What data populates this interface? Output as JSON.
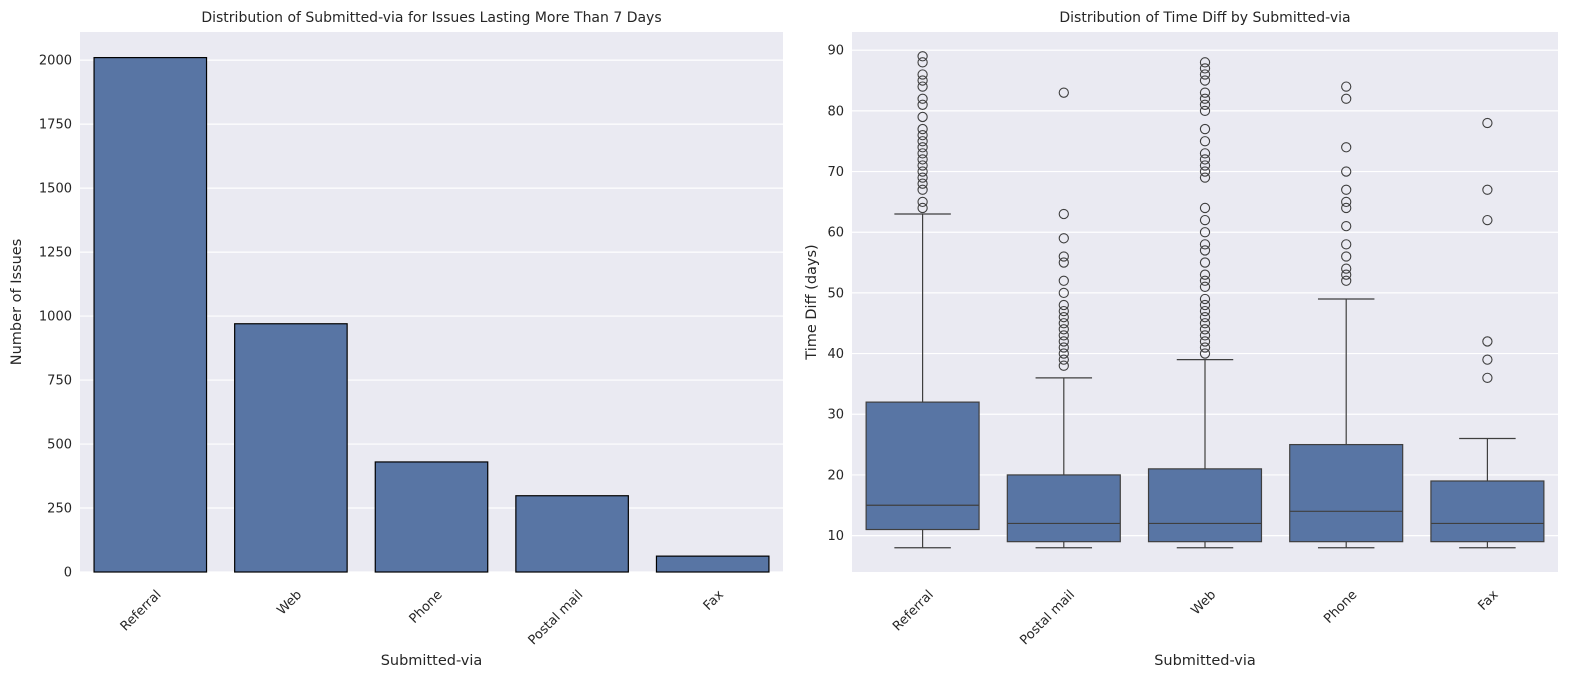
{
  "chart_data": [
    {
      "type": "bar",
      "title": "Distribution of Submitted-via for Issues Lasting More Than 7 Days",
      "xlabel": "Submitted-via",
      "ylabel": "Number of Issues",
      "categories": [
        "Referral",
        "Web",
        "Phone",
        "Postal mail",
        "Fax"
      ],
      "values": [
        2010,
        970,
        430,
        298,
        62
      ],
      "ylim": [
        0,
        2110
      ],
      "yticks": [
        0,
        250,
        500,
        750,
        1000,
        1250,
        1500,
        1750,
        2000
      ],
      "grid": true,
      "colors": {
        "bar": "#5875a4",
        "edge": "#000000",
        "background": "#eaeaf2"
      }
    },
    {
      "type": "box",
      "title": "Distribution of Time Diff by Submitted-via",
      "xlabel": "Submitted-via",
      "ylabel": "Time Diff (days)",
      "categories": [
        "Referral",
        "Postal mail",
        "Web",
        "Phone",
        "Fax"
      ],
      "ylim": [
        4,
        93
      ],
      "yticks": [
        10,
        20,
        30,
        40,
        50,
        60,
        70,
        80,
        90
      ],
      "grid": true,
      "boxes": [
        {
          "whislo": 8,
          "q1": 11,
          "med": 15,
          "q3": 32,
          "whishi": 63,
          "fliers": [
            64,
            65,
            67,
            68,
            69,
            70,
            71,
            72,
            73,
            74,
            75,
            76,
            77,
            79,
            81,
            82,
            84,
            85,
            86,
            88,
            89
          ]
        },
        {
          "whislo": 8,
          "q1": 9,
          "med": 12,
          "q3": 20,
          "whishi": 36,
          "fliers": [
            38,
            39,
            40,
            41,
            42,
            43,
            44,
            45,
            46,
            47,
            48,
            50,
            52,
            55,
            56,
            59,
            63,
            83
          ]
        },
        {
          "whislo": 8,
          "q1": 9,
          "med": 12,
          "q3": 21,
          "whishi": 39,
          "fliers": [
            40,
            41,
            42,
            43,
            44,
            45,
            46,
            47,
            48,
            49,
            51,
            52,
            53,
            55,
            57,
            58,
            60,
            62,
            64,
            69,
            70,
            71,
            72,
            73,
            75,
            77,
            80,
            81,
            82,
            83,
            85,
            86,
            87,
            88
          ]
        },
        {
          "whislo": 8,
          "q1": 9,
          "med": 14,
          "q3": 25,
          "whishi": 49,
          "fliers": [
            52,
            53,
            54,
            56,
            58,
            61,
            64,
            65,
            67,
            70,
            74,
            82,
            84
          ]
        },
        {
          "whislo": 8,
          "q1": 9,
          "med": 12,
          "q3": 19,
          "whishi": 26,
          "fliers": [
            36,
            39,
            42,
            62,
            67,
            78
          ]
        }
      ],
      "colors": {
        "box": "#5875a4",
        "line": "#3f3f3f",
        "background": "#eaeaf2"
      }
    }
  ]
}
